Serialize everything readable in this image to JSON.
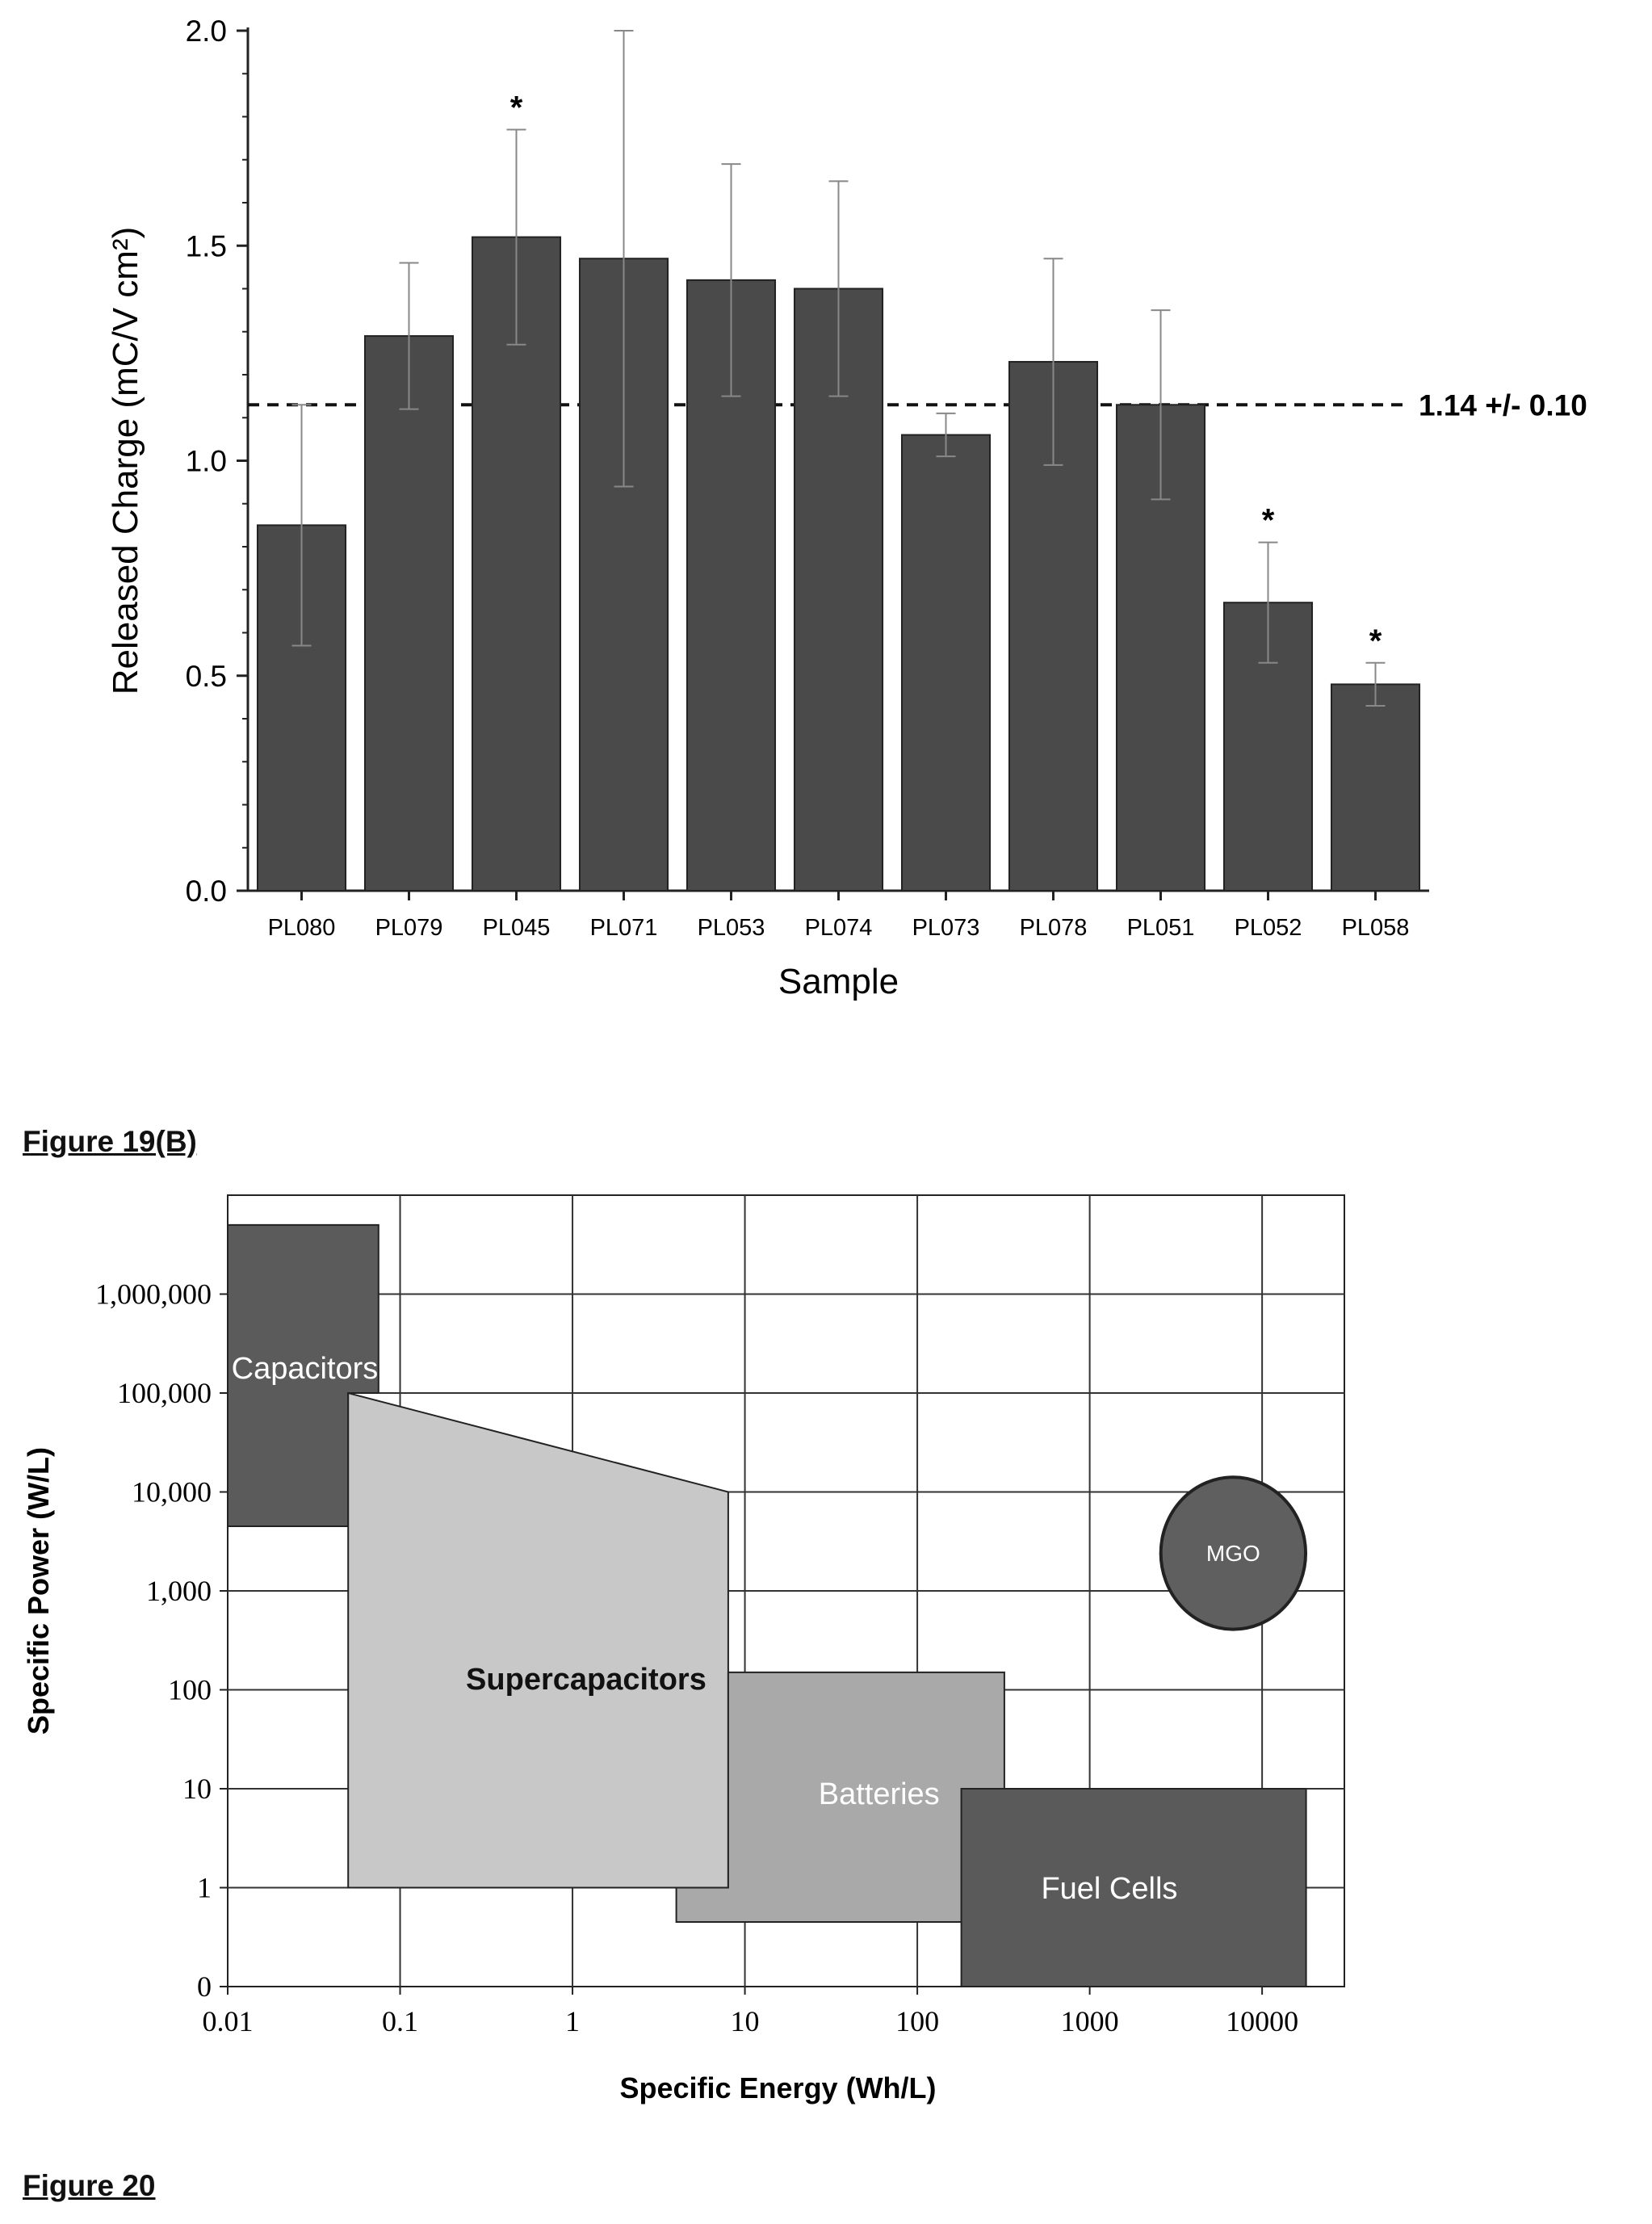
{
  "figure_labels": [
    "Figure 19(B)",
    "Figure 20"
  ],
  "chart_data": [
    {
      "type": "bar",
      "xlabel": "Sample",
      "ylabel": "Released Charge (mC/V cm²)",
      "ylim": [
        0,
        2.0
      ],
      "yticks": [
        "0.0",
        "0.5",
        "1.0",
        "1.5",
        "2.0"
      ],
      "categories": [
        "PL080",
        "PL079",
        "PL045",
        "PL071",
        "PL053",
        "PL074",
        "PL073",
        "PL078",
        "PL051",
        "PL052",
        "PL058"
      ],
      "values": [
        0.85,
        1.29,
        1.52,
        1.47,
        1.42,
        1.4,
        1.06,
        1.23,
        1.13,
        0.67,
        0.48
      ],
      "errors": [
        0.28,
        0.17,
        0.25,
        0.53,
        0.27,
        0.25,
        0.05,
        0.24,
        0.22,
        0.14,
        0.05
      ],
      "significant": [
        false,
        false,
        true,
        false,
        false,
        false,
        false,
        false,
        false,
        true,
        true
      ],
      "significance_mark": "*",
      "reference_line": {
        "value": 1.13,
        "label": "1.14 +/- 0.10",
        "style": "dashed"
      },
      "bar_color": "#4a4a4a"
    },
    {
      "type": "area",
      "title": "",
      "xlabel": "Specific Energy (Wh/L)",
      "ylabel": "Specific Power (W/L)",
      "x_scale": "log",
      "y_scale": "log",
      "xlim": [
        0.01,
        30000
      ],
      "ylim": [
        0.1,
        10000000
      ],
      "xticks": [
        {
          "value": 0.01,
          "label": "0.01"
        },
        {
          "value": 0.1,
          "label": "0.1"
        },
        {
          "value": 1,
          "label": "1"
        },
        {
          "value": 10,
          "label": "10"
        },
        {
          "value": 100,
          "label": "100"
        },
        {
          "value": 1000,
          "label": "1000"
        },
        {
          "value": 10000,
          "label": "10000"
        }
      ],
      "yticks": [
        {
          "value": 0.1,
          "label": "0"
        },
        {
          "value": 1,
          "label": "1"
        },
        {
          "value": 10,
          "label": "10"
        },
        {
          "value": 100,
          "label": "100"
        },
        {
          "value": 1000,
          "label": "1,000"
        },
        {
          "value": 10000,
          "label": "10,000"
        },
        {
          "value": 100000,
          "label": "100,000"
        },
        {
          "value": 1000000,
          "label": "1,000,000"
        }
      ],
      "grid": true,
      "regions": [
        {
          "name": "Capacitors",
          "color": "#5b5b5b",
          "text_color": "#ffffff",
          "label_bold": false,
          "polygon": [
            [
              0.01,
              4500
            ],
            [
              0.05,
              4500
            ],
            [
              0.05,
              100000
            ],
            [
              0.075,
              100000
            ],
            [
              0.075,
              5000000
            ],
            [
              0.01,
              5000000
            ]
          ],
          "label_at": [
            0.028,
            180000
          ]
        },
        {
          "name": "Supercapacitors",
          "color": "#c8c8c8",
          "text_color": "#111111",
          "label_bold": true,
          "polygon": [
            [
              0.05,
              1
            ],
            [
              8,
              1
            ],
            [
              8,
              10000
            ],
            [
              0.05,
              100000
            ]
          ],
          "label_at": [
            1.2,
            130
          ]
        },
        {
          "name": "Batteries",
          "color": "#a9a9a9",
          "text_color": "#ffffff",
          "label_bold": false,
          "polygon": [
            [
              4,
              0.45
            ],
            [
              320,
              0.45
            ],
            [
              320,
              150
            ],
            [
              8,
              150
            ],
            [
              8,
              1
            ],
            [
              4,
              1
            ]
          ],
          "label_at": [
            60,
            9
          ]
        },
        {
          "name": "Fuel Cells",
          "color": "#5a5a5a",
          "text_color": "#ffffff",
          "label_bold": false,
          "polygon": [
            [
              180,
              0.1
            ],
            [
              18000,
              0.1
            ],
            [
              18000,
              10
            ],
            [
              180,
              10
            ]
          ],
          "label_at": [
            1300,
            1
          ]
        },
        {
          "name": "MGO",
          "color": "#5f5f5f",
          "text_color": "#ffffff",
          "label_bold": false,
          "shape": "circle",
          "center": [
            6800,
            2400
          ],
          "radius_decades": 0.42,
          "label_at": [
            6800,
            2400
          ]
        }
      ]
    }
  ]
}
